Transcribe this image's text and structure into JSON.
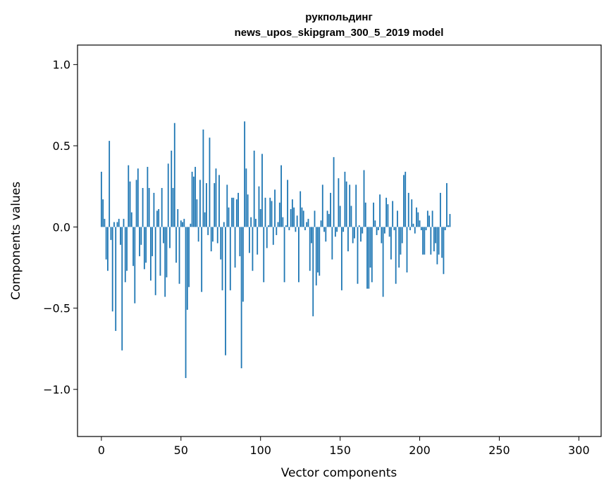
{
  "chart_data": {
    "type": "bar",
    "title": "рукпольдинг",
    "subtitle": "news_upos_skipgram_300_5_2019 model",
    "xlabel": "Vector components",
    "ylabel": "Components values",
    "xlim": [
      -15,
      314
    ],
    "ylim": [
      -1.29,
      1.12
    ],
    "xticks": [
      0,
      50,
      100,
      150,
      200,
      250,
      300
    ],
    "xtick_labels": [
      "0",
      "50",
      "100",
      "150",
      "200",
      "250",
      "300"
    ],
    "yticks": [
      1.0,
      0.5,
      0.0,
      -0.5,
      -1.0
    ],
    "ytick_labels": [
      "1.0",
      "0.5",
      "0.0",
      "−0.5",
      "−1.0"
    ],
    "grid": false,
    "legend": "none",
    "bar_color": "#1f77b4",
    "values": [
      0.34,
      0.17,
      0.05,
      -0.2,
      -0.27,
      0.53,
      -0.08,
      -0.52,
      0.03,
      -0.64,
      0.03,
      0.05,
      -0.11,
      -0.76,
      0.05,
      -0.34,
      -0.27,
      0.38,
      0.28,
      0.09,
      -0.24,
      -0.47,
      0.29,
      0.36,
      -0.18,
      -0.11,
      0.24,
      -0.26,
      -0.22,
      0.37,
      0.24,
      -0.33,
      -0.18,
      0.21,
      -0.42,
      0.1,
      0.11,
      -0.3,
      0.24,
      -0.1,
      -0.43,
      -0.31,
      0.39,
      -0.13,
      0.47,
      0.24,
      0.64,
      -0.22,
      0.11,
      -0.35,
      0.04,
      0.03,
      0.05,
      -0.93,
      -0.51,
      -0.37,
      0.02,
      0.34,
      0.31,
      0.37,
      0.17,
      -0.09,
      0.29,
      -0.4,
      0.6,
      0.09,
      0.27,
      -0.05,
      0.55,
      -0.15,
      -0.09,
      0.27,
      0.36,
      -0.1,
      0.32,
      -0.2,
      -0.39,
      0.03,
      -0.79,
      0.26,
      0.12,
      -0.39,
      0.18,
      0.18,
      -0.25,
      0.17,
      0.21,
      -0.18,
      -0.87,
      -0.46,
      0.65,
      0.36,
      0.2,
      -0.16,
      0.06,
      -0.27,
      0.47,
      0.05,
      -0.17,
      0.25,
      0.11,
      0.45,
      -0.34,
      0.18,
      -0.13,
      0.01,
      0.18,
      0.16,
      -0.11,
      0.23,
      -0.05,
      0.03,
      0.15,
      0.38,
      0.06,
      -0.34,
      0.01,
      0.29,
      -0.02,
      0.11,
      0.17,
      0.12,
      -0.03,
      0.07,
      -0.34,
      0.22,
      0.12,
      0.1,
      -0.02,
      0.03,
      0.05,
      -0.27,
      -0.1,
      -0.55,
      0.1,
      -0.36,
      -0.28,
      -0.3,
      0.04,
      0.26,
      -0.03,
      -0.09,
      0.1,
      0.08,
      0.21,
      -0.2,
      0.43,
      -0.06,
      -0.03,
      0.3,
      0.13,
      -0.39,
      -0.03,
      0.34,
      0.28,
      -0.15,
      0.26,
      0.13,
      -0.1,
      -0.07,
      0.26,
      -0.35,
      0.01,
      -0.09,
      -0.04,
      0.35,
      0.15,
      -0.38,
      -0.38,
      -0.25,
      -0.34,
      0.15,
      0.04,
      -0.05,
      -0.02,
      0.2,
      -0.1,
      -0.43,
      -0.04,
      0.18,
      0.14,
      -0.06,
      -0.2,
      0.16,
      -0.02,
      -0.35,
      0.1,
      -0.25,
      -0.17,
      -0.1,
      0.32,
      0.34,
      -0.28,
      0.21,
      -0.02,
      0.17,
      0.02,
      -0.04,
      0.12,
      0.09,
      0.04,
      -0.02,
      -0.17,
      -0.17,
      -0.02,
      0.1,
      0.07,
      -0.17,
      0.1,
      -0.15,
      -0.1,
      -0.23,
      -0.17,
      0.21,
      -0.19,
      -0.29,
      -0.02,
      0.27,
      0.01,
      0.08
    ]
  }
}
